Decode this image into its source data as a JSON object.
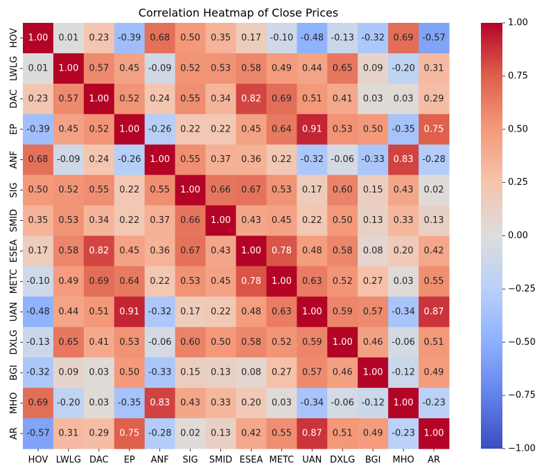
{
  "chart_data": {
    "type": "heatmap",
    "title": "Correlation Heatmap of Close Prices",
    "xlabel": "",
    "ylabel": "",
    "labels": [
      "HOV",
      "LWLG",
      "DAC",
      "EP",
      "ANF",
      "SIG",
      "SMID",
      "ESEA",
      "METC",
      "UAN",
      "DXLG",
      "BGI",
      "MHO",
      "AR"
    ],
    "matrix": [
      [
        1.0,
        0.01,
        0.23,
        -0.39,
        0.68,
        0.5,
        0.35,
        0.17,
        -0.1,
        -0.48,
        -0.13,
        -0.32,
        0.69,
        -0.57
      ],
      [
        0.01,
        1.0,
        0.57,
        0.45,
        -0.09,
        0.52,
        0.53,
        0.58,
        0.49,
        0.44,
        0.65,
        0.09,
        -0.2,
        0.31
      ],
      [
        0.23,
        0.57,
        1.0,
        0.52,
        0.24,
        0.55,
        0.34,
        0.82,
        0.69,
        0.51,
        0.41,
        0.03,
        0.03,
        0.29
      ],
      [
        -0.39,
        0.45,
        0.52,
        1.0,
        -0.26,
        0.22,
        0.22,
        0.45,
        0.64,
        0.91,
        0.53,
        0.5,
        -0.35,
        0.75
      ],
      [
        0.68,
        -0.09,
        0.24,
        -0.26,
        1.0,
        0.55,
        0.37,
        0.36,
        0.22,
        -0.32,
        -0.06,
        -0.33,
        0.83,
        -0.28
      ],
      [
        0.5,
        0.52,
        0.55,
        0.22,
        0.55,
        1.0,
        0.66,
        0.67,
        0.53,
        0.17,
        0.6,
        0.15,
        0.43,
        0.02
      ],
      [
        0.35,
        0.53,
        0.34,
        0.22,
        0.37,
        0.66,
        1.0,
        0.43,
        0.45,
        0.22,
        0.5,
        0.13,
        0.33,
        0.13
      ],
      [
        0.17,
        0.58,
        0.82,
        0.45,
        0.36,
        0.67,
        0.43,
        1.0,
        0.78,
        0.48,
        0.58,
        0.08,
        0.2,
        0.42
      ],
      [
        -0.1,
        0.49,
        0.69,
        0.64,
        0.22,
        0.53,
        0.45,
        0.78,
        1.0,
        0.63,
        0.52,
        0.27,
        0.03,
        0.55
      ],
      [
        -0.48,
        0.44,
        0.51,
        0.91,
        -0.32,
        0.17,
        0.22,
        0.48,
        0.63,
        1.0,
        0.59,
        0.57,
        -0.34,
        0.87
      ],
      [
        -0.13,
        0.65,
        0.41,
        0.53,
        -0.06,
        0.6,
        0.5,
        0.58,
        0.52,
        0.59,
        1.0,
        0.46,
        -0.06,
        0.51
      ],
      [
        -0.32,
        0.09,
        0.03,
        0.5,
        -0.33,
        0.15,
        0.13,
        0.08,
        0.27,
        0.57,
        0.46,
        1.0,
        -0.12,
        0.49
      ],
      [
        0.69,
        -0.2,
        0.03,
        -0.35,
        0.83,
        0.43,
        0.33,
        0.2,
        0.03,
        -0.34,
        -0.06,
        -0.12,
        1.0,
        -0.23
      ],
      [
        -0.57,
        0.31,
        0.29,
        0.75,
        -0.28,
        0.02,
        0.13,
        0.42,
        0.55,
        0.87,
        0.51,
        0.49,
        -0.23,
        1.0
      ]
    ],
    "colorbar": {
      "colormap": "coolwarm",
      "range": [
        -1.0,
        1.0
      ],
      "ticks": [
        "1.00",
        "0.75",
        "0.50",
        "0.25",
        "0.00",
        "−0.25",
        "−0.50",
        "−0.75",
        "−1.00"
      ]
    },
    "annotation_format": "0.00",
    "grid": false
  }
}
